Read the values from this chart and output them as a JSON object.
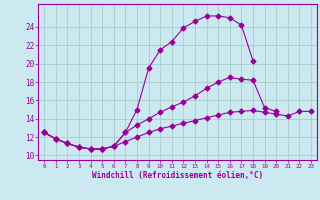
{
  "xlabel": "Windchill (Refroidissement éolien,°C)",
  "background_color": "#cce8f0",
  "grid_color": "#a0c8c0",
  "line_color": "#990099",
  "x": [
    0,
    1,
    2,
    3,
    4,
    5,
    6,
    7,
    8,
    9,
    10,
    11,
    12,
    13,
    14,
    15,
    16,
    17,
    18,
    19,
    20,
    21,
    22,
    23
  ],
  "line1": [
    12.5,
    11.8,
    11.3,
    10.9,
    10.7,
    10.7,
    11.0,
    12.5,
    15.0,
    19.5,
    21.5,
    22.4,
    23.9,
    24.6,
    25.2,
    25.2,
    25.0,
    24.2,
    20.3,
    null,
    null,
    null,
    null,
    null
  ],
  "line2": [
    12.5,
    11.8,
    11.3,
    10.9,
    10.7,
    10.7,
    11.0,
    12.5,
    13.3,
    14.0,
    14.7,
    15.3,
    15.8,
    16.5,
    17.3,
    18.0,
    18.5,
    18.3,
    18.2,
    15.2,
    14.8,
    null,
    null,
    null
  ],
  "line3": [
    12.5,
    11.8,
    11.3,
    10.9,
    10.7,
    10.7,
    11.0,
    11.5,
    12.0,
    12.5,
    12.9,
    13.2,
    13.5,
    13.8,
    14.1,
    14.4,
    14.7,
    14.8,
    14.9,
    14.7,
    14.5,
    14.3,
    14.8,
    14.8
  ],
  "yticks": [
    10,
    12,
    14,
    16,
    18,
    20,
    22,
    24
  ],
  "xlim": [
    -0.5,
    23.5
  ],
  "ylim": [
    9.5,
    26.5
  ]
}
